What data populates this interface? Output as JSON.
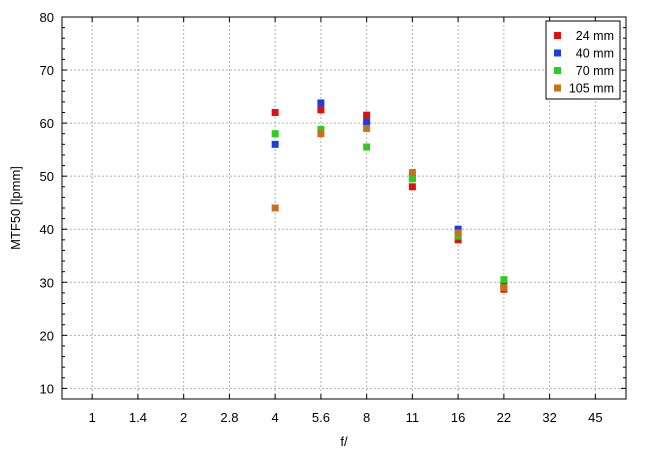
{
  "chart_data": {
    "type": "scatter",
    "xlabel": "f/",
    "ylabel": "MTF50 [lpmm]",
    "x_categories": [
      "1",
      "1.4",
      "2",
      "2.8",
      "4",
      "5.6",
      "8",
      "11",
      "16",
      "22",
      "32",
      "45"
    ],
    "ylim": [
      8,
      80
    ],
    "y_ticks": [
      10,
      20,
      30,
      40,
      50,
      60,
      70,
      80
    ],
    "grid": true,
    "legend_position": "top-right",
    "series": [
      {
        "name": "24 mm",
        "color": "#e41010",
        "points": [
          [
            "4",
            62.0
          ],
          [
            "5.6",
            62.5
          ],
          [
            "8",
            61.5
          ],
          [
            "11",
            48.0
          ],
          [
            "16",
            38.0
          ],
          [
            "22",
            28.7
          ]
        ]
      },
      {
        "name": "40 mm",
        "color": "#1a3fe0",
        "points": [
          [
            "4",
            56.0
          ],
          [
            "5.6",
            63.8
          ],
          [
            "8",
            60.2
          ],
          [
            "11",
            49.8
          ],
          [
            "16",
            40.0
          ],
          [
            "22",
            29.5
          ]
        ]
      },
      {
        "name": "70 mm",
        "color": "#2ecc1f",
        "points": [
          [
            "4",
            58.0
          ],
          [
            "5.6",
            58.8
          ],
          [
            "8",
            55.5
          ],
          [
            "11",
            49.5
          ],
          [
            "16",
            38.7
          ],
          [
            "22",
            30.5
          ]
        ]
      },
      {
        "name": "105 mm",
        "color": "#c8701a",
        "points": [
          [
            "4",
            44.0
          ],
          [
            "5.6",
            58.0
          ],
          [
            "8",
            59.0
          ],
          [
            "11",
            50.7
          ],
          [
            "16",
            39.3
          ],
          [
            "22",
            29.0
          ]
        ]
      }
    ]
  }
}
